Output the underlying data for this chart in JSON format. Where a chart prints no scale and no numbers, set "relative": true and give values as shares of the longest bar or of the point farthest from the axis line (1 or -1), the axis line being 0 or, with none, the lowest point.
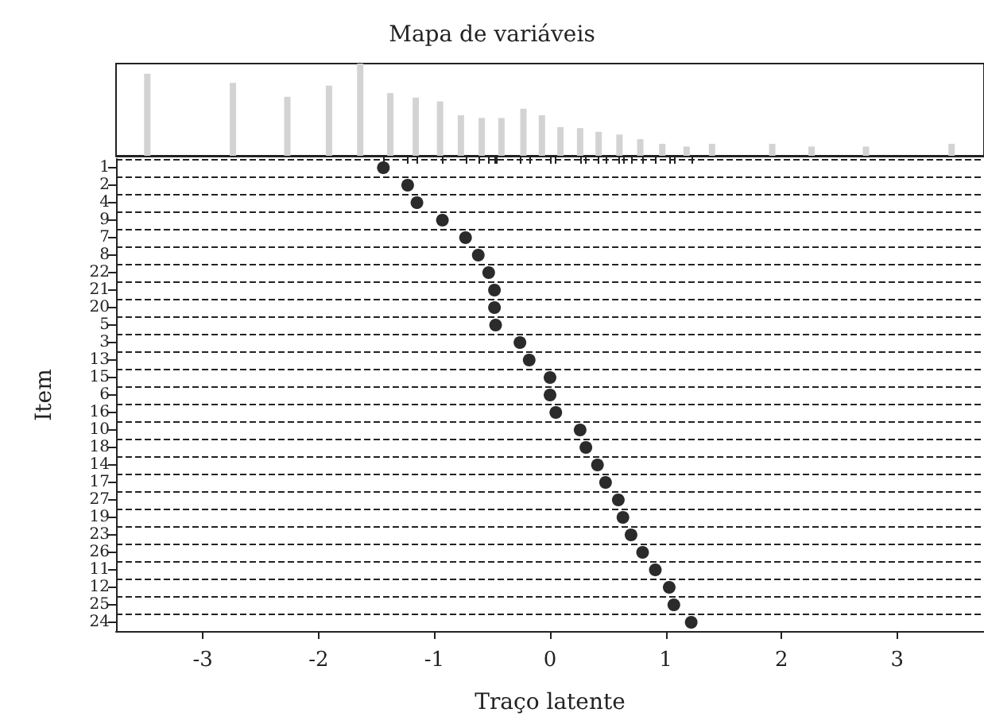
{
  "chart_data": [
    {
      "type": "bar",
      "title": "Mapa de variáveis",
      "relative": true,
      "color": "#d3d3d3",
      "tick_labels": false,
      "xlim": [
        -3.75,
        3.75
      ],
      "x": [
        -3.48,
        -2.74,
        -2.27,
        -1.91,
        -1.64,
        -1.38,
        -1.16,
        -0.95,
        -0.77,
        -0.59,
        -0.42,
        -0.23,
        -0.07,
        0.09,
        0.26,
        0.42,
        0.6,
        0.78,
        0.97,
        1.18,
        1.4,
        1.92,
        2.26,
        2.73,
        3.47
      ],
      "values": [
        0.89,
        0.79,
        0.64,
        0.76,
        1,
        0.68,
        0.63,
        0.59,
        0.44,
        0.41,
        0.41,
        0.51,
        0.44,
        0.31,
        0.3,
        0.26,
        0.23,
        0.18,
        0.13,
        0.1,
        0.13,
        0.13,
        0.1,
        0.1,
        0.13
      ]
    },
    {
      "type": "scatter",
      "orientation": "horizontal",
      "xlabel": "Traço latente",
      "ylabel": "Item",
      "color": "#2b2b2b",
      "marker": "circle",
      "grid": "y",
      "line_style": "dashed",
      "xlim": [
        -3.75,
        3.75
      ],
      "xticks": [
        -3,
        -2,
        -1,
        0,
        1,
        2,
        3
      ],
      "categories": [
        "1",
        "2",
        "4",
        "9",
        "7",
        "8",
        "22",
        "21",
        "20",
        "5",
        "3",
        "13",
        "15",
        "6",
        "16",
        "10",
        "18",
        "14",
        "17",
        "27",
        "19",
        "23",
        "26",
        "11",
        "12",
        "25",
        "24"
      ],
      "values": [
        -1.44,
        -1.23,
        -1.15,
        -0.93,
        -0.73,
        -0.62,
        -0.53,
        -0.48,
        -0.48,
        -0.47,
        -0.26,
        -0.18,
        0.0,
        0.0,
        0.05,
        0.26,
        0.31,
        0.41,
        0.48,
        0.59,
        0.63,
        0.7,
        0.8,
        0.91,
        1.03,
        1.07,
        1.22
      ]
    }
  ]
}
